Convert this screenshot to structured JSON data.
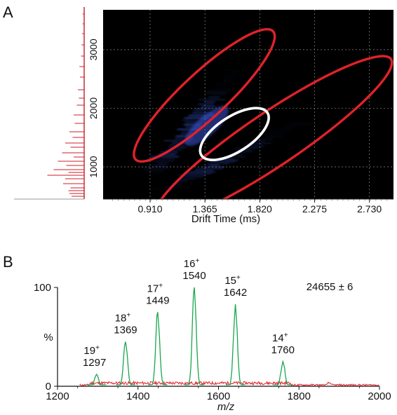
{
  "chart_data": [
    {
      "panel": "A",
      "type": "heatmap",
      "xlabel": "Drift Time (ms)",
      "ylabel": "",
      "x_ticks": [
        "0.910",
        "1.365",
        "1.820",
        "2.275",
        "2.730"
      ],
      "y_ticks": [
        "1000",
        "2000",
        "3000"
      ],
      "xlim": [
        0.52,
        2.93
      ],
      "ylim": [
        450,
        3680
      ],
      "grid": true,
      "colors": {
        "background": "#000000",
        "signal": "#3a5ad8",
        "regions": "#e0222a",
        "highlight": "#ffffff"
      },
      "regions": [
        {
          "color": "red",
          "center": [
            1.36,
            2220
          ],
          "angle_deg": 43
        },
        {
          "color": "red",
          "center": [
            1.93,
            1480
          ],
          "angle_deg": 34
        },
        {
          "color": "white",
          "center": [
            1.61,
            1560
          ],
          "angle_deg": 33
        }
      ],
      "projection": {
        "axis": "m/z",
        "color": "#d21e28"
      }
    },
    {
      "panel": "B",
      "type": "line",
      "xlabel": "m/z",
      "ylabel": "%",
      "xlim": [
        1200,
        2000
      ],
      "ylim": [
        0,
        100
      ],
      "x_ticks": [
        "1200",
        "1400",
        "1600",
        "1800",
        "2000"
      ],
      "y_ticks": [
        "0",
        "100"
      ],
      "annotation": "24655 ± 6",
      "colors": {
        "noise": "#e0222a",
        "peaks": "#19a64c"
      },
      "peaks": [
        {
          "charge": "19",
          "mz": "1297",
          "x": 1297,
          "y": 12
        },
        {
          "charge": "18",
          "mz": "1369",
          "x": 1369,
          "y": 45
        },
        {
          "charge": "17",
          "mz": "1449",
          "x": 1449,
          "y": 75
        },
        {
          "charge": "16",
          "mz": "1540",
          "x": 1540,
          "y": 100
        },
        {
          "charge": "15",
          "mz": "1642",
          "x": 1642,
          "y": 83
        },
        {
          "charge": "14",
          "mz": "1760",
          "x": 1760,
          "y": 25
        }
      ]
    }
  ],
  "panel_labels": [
    "A",
    "B"
  ]
}
